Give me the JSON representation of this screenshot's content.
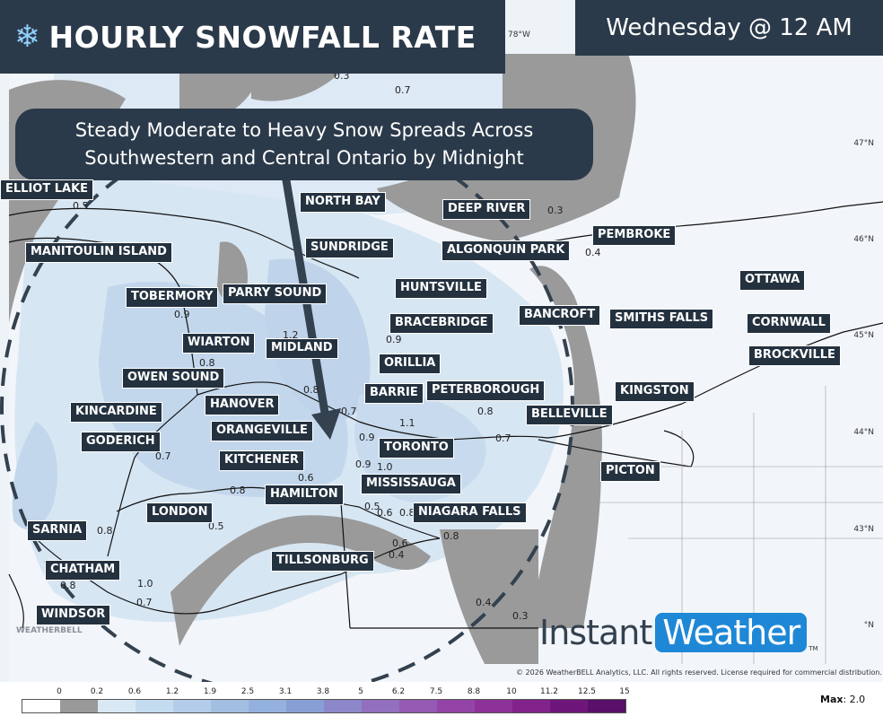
{
  "header": {
    "title": "HOURLY SNOWFALL RATE",
    "time": "Wednesday @ 12 AM",
    "subtitle_line1": "Steady Moderate to Heavy Snow Spreads Across",
    "subtitle_line2": "Southwestern and Central Ontario by Midnight"
  },
  "cities": [
    {
      "name": "ELLIOT LAKE"
    },
    {
      "name": "NORTH BAY"
    },
    {
      "name": "DEEP RIVER"
    },
    {
      "name": "MANITOULIN ISLAND"
    },
    {
      "name": "SUNDRIDGE"
    },
    {
      "name": "ALGONQUIN PARK"
    },
    {
      "name": "PEMBROKE"
    },
    {
      "name": "TOBERMORY"
    },
    {
      "name": "PARRY SOUND"
    },
    {
      "name": "HUNTSVILLE"
    },
    {
      "name": "OTTAWA"
    },
    {
      "name": "BANCROFT"
    },
    {
      "name": "SMITHS FALLS"
    },
    {
      "name": "BRACEBRIDGE"
    },
    {
      "name": "CORNWALL"
    },
    {
      "name": "WIARTON"
    },
    {
      "name": "MIDLAND"
    },
    {
      "name": "BROCKVILLE"
    },
    {
      "name": "ORILLIA"
    },
    {
      "name": "OWEN SOUND"
    },
    {
      "name": "BARRIE"
    },
    {
      "name": "PETERBOROUGH"
    },
    {
      "name": "KINGSTON"
    },
    {
      "name": "HANOVER"
    },
    {
      "name": "KINCARDINE"
    },
    {
      "name": "BELLEVILLE"
    },
    {
      "name": "ORANGEVILLE"
    },
    {
      "name": "TORONTO"
    },
    {
      "name": "GODERICH"
    },
    {
      "name": "KITCHENER"
    },
    {
      "name": "PICTON"
    },
    {
      "name": "MISSISSAUGA"
    },
    {
      "name": "HAMILTON"
    },
    {
      "name": "LONDON"
    },
    {
      "name": "NIAGARA FALLS"
    },
    {
      "name": "SARNIA"
    },
    {
      "name": "TILLSONBURG"
    },
    {
      "name": "CHATHAM"
    },
    {
      "name": "WINDSOR"
    }
  ],
  "values": [
    "0.5",
    "0.7",
    "0.5",
    "0.3",
    "0.8",
    "0.4",
    "0.9",
    "1.2",
    "0.9",
    "0.8",
    "0.8",
    "0.8",
    "0.7",
    "1.1",
    "0.8",
    "0.9",
    "0.7",
    "0.6",
    "0.9",
    "1.0",
    "0.8",
    "0.8",
    "0.6",
    "0.8",
    "0.5",
    "0.6",
    "0.7",
    "0.8",
    "0.5",
    "0.8",
    "0.6",
    "0.4",
    "0.8",
    "1.0",
    "0.7",
    "0.8",
    "0.4",
    "0.3",
    "0.3"
  ],
  "grid": {
    "lon_label": "78°W",
    "lat_labels": [
      "47°N",
      "46°N",
      "45°N",
      "44°N",
      "43°N",
      "°N"
    ]
  },
  "branding": {
    "instant": "Instant",
    "weather": "Weather",
    "tm": "TM",
    "weatherbell": "WEATHERBELL",
    "copyright": "© 2026 WeatherBELL Analytics, LLC. All rights reserved. License required for commercial distribution."
  },
  "legend": {
    "ticks": [
      "0",
      "0.2",
      "0.6",
      "1.2",
      "1.9",
      "2.5",
      "3.1",
      "3.8",
      "5",
      "6.2",
      "7.5",
      "8.8",
      "10",
      "11.2",
      "12.5",
      "15"
    ],
    "colors": [
      "#ffffff",
      "#999999",
      "#d8e8f5",
      "#c5dbef",
      "#b3cde9",
      "#a2bfe2",
      "#93b1dc",
      "#879fd4",
      "#8b87c9",
      "#9270bf",
      "#955ab3",
      "#9444a6",
      "#8d3299",
      "#82228b",
      "#6e167a",
      "#5a0f68"
    ],
    "max_label": "Max",
    "max_value": "2.0"
  }
}
